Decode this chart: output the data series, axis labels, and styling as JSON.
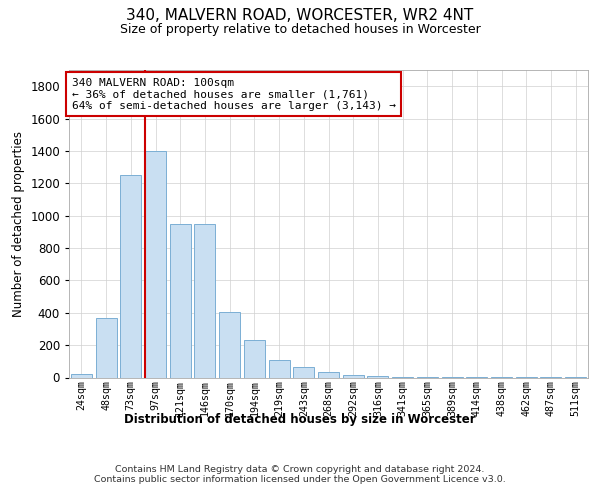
{
  "title1": "340, MALVERN ROAD, WORCESTER, WR2 4NT",
  "title2": "Size of property relative to detached houses in Worcester",
  "xlabel": "Distribution of detached houses by size in Worcester",
  "ylabel": "Number of detached properties",
  "categories": [
    "24sqm",
    "48sqm",
    "73sqm",
    "97sqm",
    "121sqm",
    "146sqm",
    "170sqm",
    "194sqm",
    "219sqm",
    "243sqm",
    "268sqm",
    "292sqm",
    "316sqm",
    "341sqm",
    "365sqm",
    "389sqm",
    "414sqm",
    "438sqm",
    "462sqm",
    "487sqm",
    "511sqm"
  ],
  "values": [
    20,
    370,
    1250,
    1400,
    950,
    950,
    405,
    230,
    110,
    65,
    35,
    15,
    10,
    5,
    3,
    2,
    2,
    1,
    1,
    1,
    1
  ],
  "bar_color": "#c9dff2",
  "bar_edge_color": "#7bafd4",
  "vline_color": "#cc0000",
  "vline_x_index": 3,
  "annotation_text": "340 MALVERN ROAD: 100sqm\n← 36% of detached houses are smaller (1,761)\n64% of semi-detached houses are larger (3,143) →",
  "annotation_box_color": "#ffffff",
  "annotation_box_edge": "#cc0000",
  "ylim": [
    0,
    1900
  ],
  "yticks": [
    0,
    200,
    400,
    600,
    800,
    1000,
    1200,
    1400,
    1600,
    1800
  ],
  "footer": "Contains HM Land Registry data © Crown copyright and database right 2024.\nContains public sector information licensed under the Open Government Licence v3.0.",
  "bg_color": "#ffffff",
  "grid_color": "#d0d0d0"
}
